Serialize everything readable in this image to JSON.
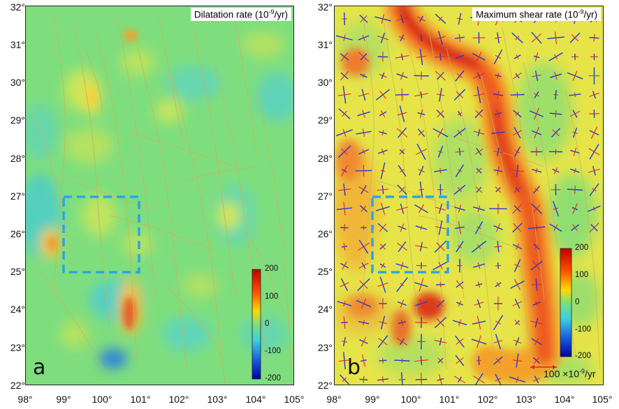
{
  "panels": [
    {
      "letter": "a",
      "title_main": "Dilatation rate (10",
      "title_exp": "-9",
      "title_end": "/yr)",
      "colorbar_labels": [
        "200",
        "100",
        "0",
        "-100",
        "-200"
      ]
    },
    {
      "letter": "b",
      "title_main": "Maximum shear rate (10",
      "title_exp": "-9",
      "title_end": "/yr)",
      "colorbar_labels": [
        "200",
        "100",
        "0",
        "-100",
        "-200"
      ],
      "scale_main": "100 ×10",
      "scale_exp": "-9",
      "scale_end": "/yr"
    }
  ],
  "y_ticks": [
    "32°",
    "31°",
    "30°",
    "29°",
    "28°",
    "27°",
    "26°",
    "25°",
    "24°",
    "23°",
    "22°"
  ],
  "x_ticks": [
    "98°",
    "99°",
    "100°",
    "101°",
    "102°",
    "103°",
    "104°",
    "105°"
  ],
  "colors": {
    "background_green": "#7fe07a",
    "dashed_box": "#2ea3e6",
    "faults": "#c8b45a",
    "compression_arrows": "#1a3adf",
    "extension_arrows": "#e0242a"
  },
  "legend_icons": [
    "colorbar",
    "scale-arrow-icon"
  ]
}
